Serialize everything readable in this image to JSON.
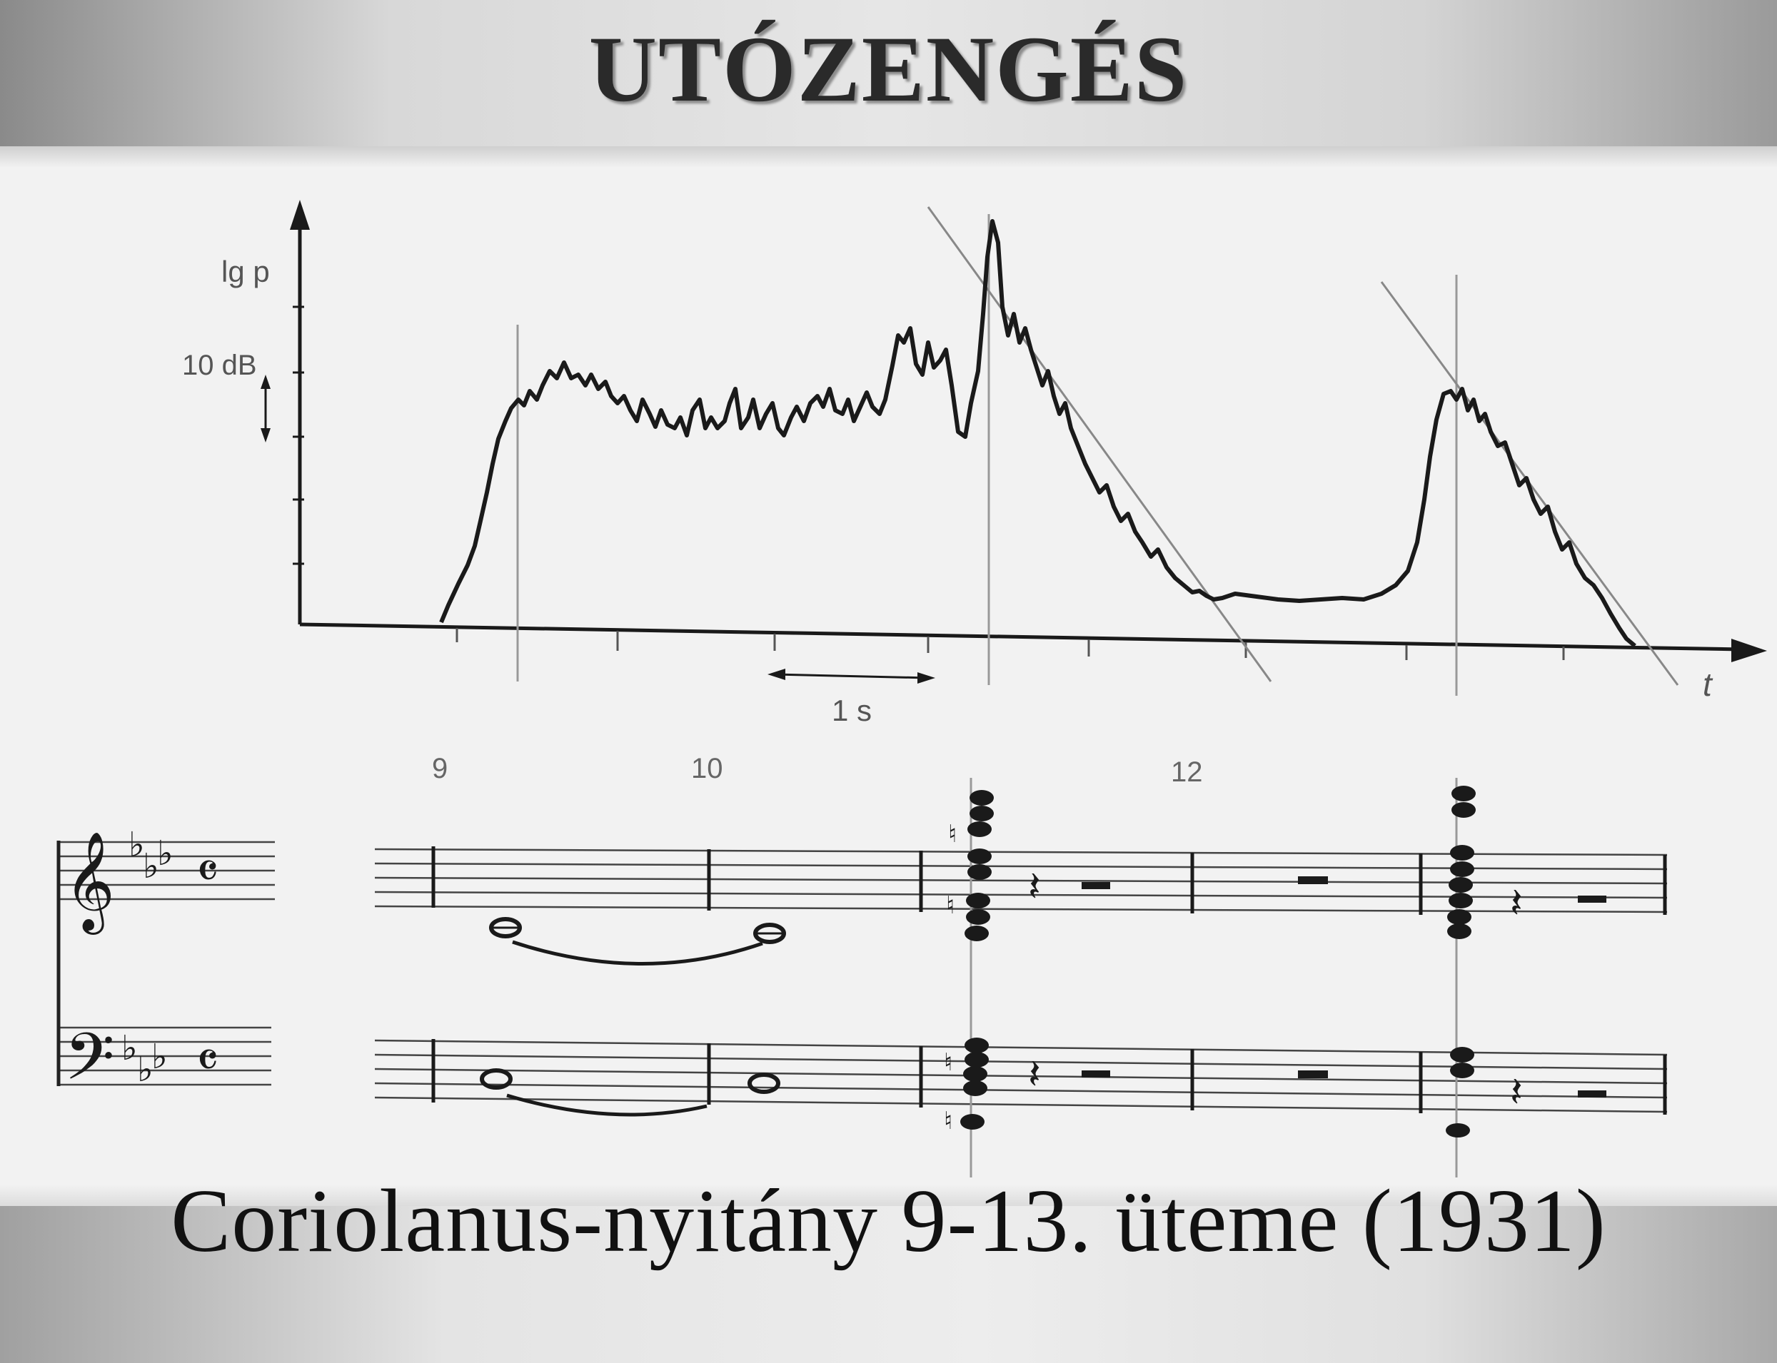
{
  "title": "UTÓZENGÉS",
  "caption": "Coriolanus-nyitány 9-13. üteme (1931)",
  "graph": {
    "y_axis_label": "lg p",
    "scale_label": "10 dB",
    "time_scale_label": "1 s",
    "x_axis_label": "t"
  },
  "score": {
    "measure_numbers": [
      "9",
      "10",
      "12"
    ],
    "time_signature_symbol": "𝄴",
    "treble_clef_symbol": "𝄞",
    "bass_clef_symbol": "𝄢",
    "key_signature": "3 flats"
  },
  "colors": {
    "ink": "#1a1a1a",
    "background": "#f2f2f2",
    "title_text": "#2a2a2a"
  }
}
